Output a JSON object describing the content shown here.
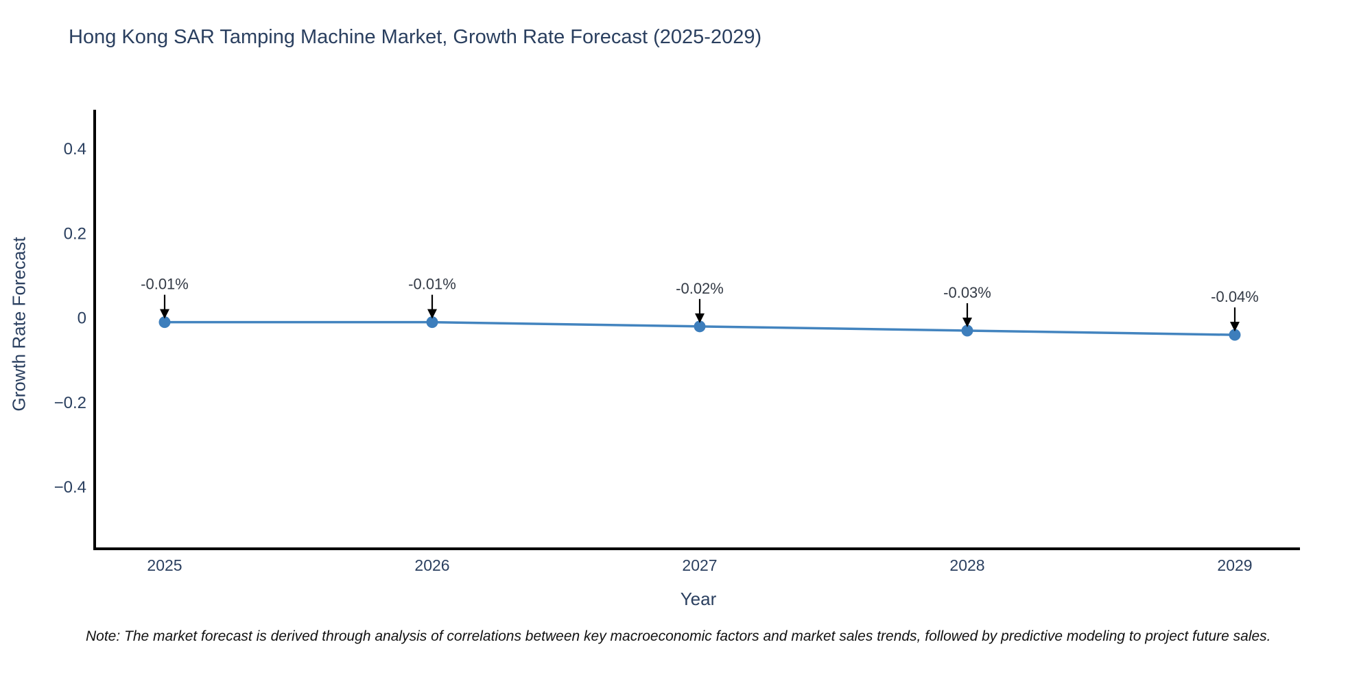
{
  "header": {
    "title": "Hong Kong SAR Tamping Machine Market, Growth Rate Forecast (2025-2029)"
  },
  "footnote": {
    "text": "Note: The market forecast is derived through analysis of correlations between key macroeconomic factors and market sales trends, followed by predictive modeling to project future sales."
  },
  "colors": {
    "text": "#2a3f5f",
    "annotation_text": "#333a45",
    "axis_line": "#000000",
    "line": "#4384bf",
    "marker": "#3d7ebc",
    "arrow": "#000000",
    "background": "#ffffff"
  },
  "chart_data": {
    "type": "line",
    "title": "Hong Kong SAR Tamping Machine Market, Growth Rate Forecast (2025-2029)",
    "xlabel": "Year",
    "ylabel": "Growth Rate Forecast",
    "categories": [
      "2025",
      "2026",
      "2027",
      "2028",
      "2029"
    ],
    "series": [
      {
        "name": "Growth Rate Forecast",
        "values": [
          -0.01,
          -0.01,
          -0.02,
          -0.03,
          -0.04
        ],
        "point_labels": [
          "-0.01%",
          "-0.01%",
          "-0.02%",
          "-0.03%",
          "-0.04%"
        ]
      }
    ],
    "yticks": [
      {
        "label": "0.4",
        "value": 0.4
      },
      {
        "label": "0.2",
        "value": 0.2
      },
      {
        "label": "0",
        "value": 0.0
      },
      {
        "label": "−0.2",
        "value": -0.2
      },
      {
        "label": "−0.4",
        "value": -0.4
      }
    ],
    "ylim": [
      -0.55,
      0.5
    ],
    "grid": false,
    "legend_position": "none",
    "annotations_have_arrows": true
  }
}
